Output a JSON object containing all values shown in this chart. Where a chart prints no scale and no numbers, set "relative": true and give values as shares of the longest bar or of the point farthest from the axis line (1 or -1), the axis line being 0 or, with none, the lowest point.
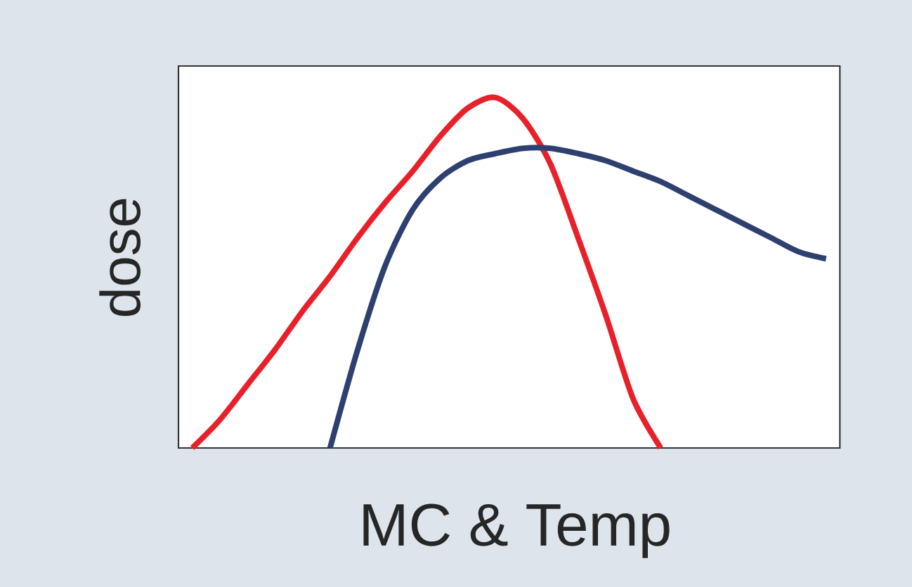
{
  "chart_data": {
    "type": "line",
    "relative": true,
    "xlabel": "MC & Temp",
    "ylabel": "dose",
    "categories": [
      null,
      null,
      null,
      null,
      null,
      null,
      null,
      null,
      null,
      null,
      null,
      null,
      null,
      null,
      null,
      null,
      null,
      null,
      null,
      null,
      null,
      null,
      null,
      null
    ],
    "series": [
      {
        "color": "#e8202a",
        "values": [
          0,
          0.08,
          0.18,
          0.28,
          0.39,
          0.49,
          0.6,
          0.7,
          0.79,
          0.89,
          0.97,
          1,
          0.94,
          0.81,
          0.6,
          0.38,
          0.14,
          0,
          null,
          null,
          null,
          null,
          null,
          null
        ]
      },
      {
        "color": "#2e4070",
        "values": [
          null,
          null,
          null,
          null,
          null,
          0,
          0.28,
          0.52,
          0.68,
          0.77,
          0.82,
          0.84,
          0.855,
          0.855,
          0.84,
          0.82,
          0.79,
          0.76,
          0.72,
          0.68,
          0.64,
          0.6,
          0.56,
          0.54
        ]
      }
    ]
  }
}
